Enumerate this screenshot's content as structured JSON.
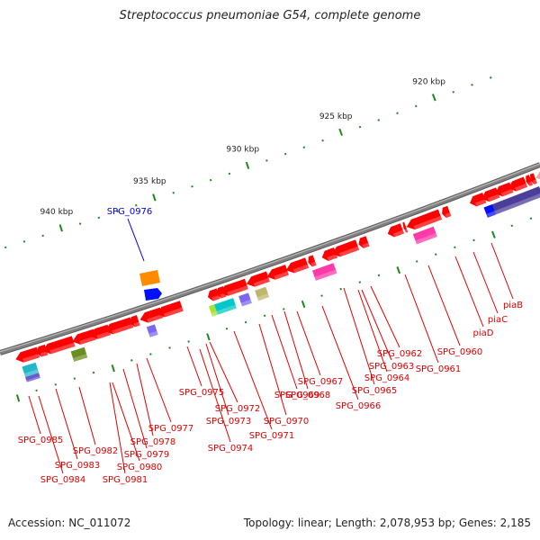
{
  "title": "Streptococcus pneumoniae G54, complete genome",
  "footer": {
    "accession": "Accession: NC_011072",
    "summary": "Topology: linear; Length: 2,078,953 bp; Genes: 2,185"
  },
  "colors": {
    "backbone": "#808080",
    "tick": "#1a8a1a",
    "label_line": "#e00000",
    "label_text": "#e00000",
    "highlight": "#0000dd",
    "forward_gene": "#ff0000"
  },
  "scale": {
    "unit": "kbp",
    "major_ticks": [
      {
        "kbp": 940,
        "label": "940 kbp"
      },
      {
        "kbp": 935,
        "label": "935 kbp"
      },
      {
        "kbp": 930,
        "label": "930 kbp"
      },
      {
        "kbp": 925,
        "label": "925 kbp"
      },
      {
        "kbp": 920,
        "label": "920 kbp"
      }
    ]
  },
  "highlighted_gene": {
    "name": "SPG_0976",
    "color": "#0000dd"
  },
  "gene_labels": [
    "SPG_0985",
    "SPG_0984",
    "SPG_0983",
    "SPG_0982",
    "SPG_0981",
    "SPG_0980",
    "SPG_0979",
    "SPG_0978",
    "SPG_0977",
    "SPG_0975",
    "SPG_0974",
    "SPG_0973",
    "SPG_0972",
    "SPG_0971",
    "SPG_0970",
    "SPG_0969",
    "SPG_0968",
    "SPG_0967",
    "SPG_0966",
    "SPG_0965",
    "SPG_0964",
    "SPG_0963",
    "SPG_0962",
    "SPG_0961",
    "SPG_0960",
    "piaD",
    "piaC",
    "piaB"
  ]
}
